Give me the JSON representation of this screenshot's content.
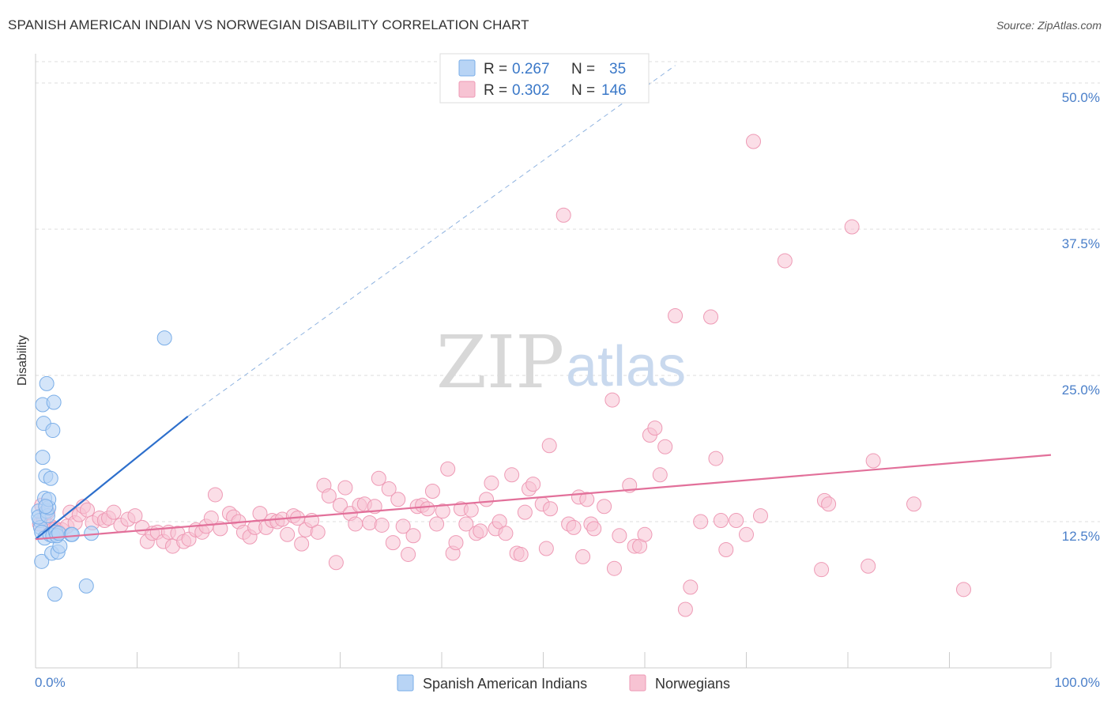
{
  "title": "SPANISH AMERICAN INDIAN VS NORWEGIAN DISABILITY CORRELATION CHART",
  "source": "Source: ZipAtlas.com",
  "watermark": {
    "zip": "ZIP",
    "atlas": "atlas"
  },
  "colors": {
    "blue_fill": "#b8d4f5",
    "blue_stroke": "#7aaee8",
    "blue_line": "#2d6fcc",
    "pink_fill": "#f7c3d3",
    "pink_stroke": "#ee9ab5",
    "pink_line": "#e2709a",
    "axis_text": "#4a7fc9",
    "grid": "#dddddd"
  },
  "legend": {
    "rows": [
      {
        "r_label": "R = ",
        "r_value": "0.267",
        "n_label": "N = ",
        "n_value": "35"
      },
      {
        "r_label": "R = ",
        "r_value": "0.302",
        "n_label": "N = ",
        "n_value": "146"
      }
    ]
  },
  "chart_data": {
    "type": "scatter",
    "ylabel": "Disability",
    "xlim": [
      0,
      100
    ],
    "ylim": [
      0,
      52.5
    ],
    "x_tick_labels": [
      "0.0%",
      "100.0%"
    ],
    "y_ticks": [
      12.5,
      25.0,
      37.5,
      50.0
    ],
    "y_tick_labels": [
      "12.5%",
      "25.0%",
      "37.5%",
      "50.0%"
    ],
    "grid": true,
    "legend_position": "top-center",
    "bottom_legend": [
      "Spanish American Indians",
      "Norwegians"
    ],
    "series": [
      {
        "name": "Spanish American Indians",
        "r": 0.267,
        "n": 35,
        "trend": {
          "x": [
            0,
            15
          ],
          "y": [
            11.0,
            21.5
          ]
        },
        "trend_extension": {
          "x": [
            15,
            63
          ],
          "y": [
            21.5,
            51.5
          ]
        },
        "points": [
          [
            0.3,
            13.4
          ],
          [
            0.4,
            12.6
          ],
          [
            0.5,
            12.0
          ],
          [
            0.6,
            11.6
          ],
          [
            0.3,
            12.9
          ],
          [
            0.7,
            18.0
          ],
          [
            0.7,
            22.5
          ],
          [
            0.8,
            20.9
          ],
          [
            0.6,
            9.1
          ],
          [
            0.9,
            14.5
          ],
          [
            0.9,
            11.1
          ],
          [
            1.0,
            16.4
          ],
          [
            1.1,
            13.4
          ],
          [
            1.1,
            24.3
          ],
          [
            1.2,
            13.0
          ],
          [
            1.3,
            13.7
          ],
          [
            1.3,
            14.4
          ],
          [
            1.4,
            11.4
          ],
          [
            1.5,
            16.2
          ],
          [
            1.7,
            20.3
          ],
          [
            1.8,
            22.7
          ],
          [
            1.6,
            9.8
          ],
          [
            1.7,
            11.3
          ],
          [
            1.9,
            6.3
          ],
          [
            2.0,
            11.6
          ],
          [
            2.2,
            9.9
          ],
          [
            2.4,
            10.4
          ],
          [
            2.1,
            11.3
          ],
          [
            2.3,
            11.5
          ],
          [
            3.5,
            11.4
          ],
          [
            3.6,
            11.4
          ],
          [
            5.0,
            7.0
          ],
          [
            5.5,
            11.5
          ],
          [
            12.7,
            28.2
          ],
          [
            1.0,
            13.8
          ]
        ]
      },
      {
        "name": "Norwegians",
        "r": 0.302,
        "n": 146,
        "trend": {
          "x": [
            0,
            100
          ],
          "y": [
            11.0,
            18.2
          ]
        },
        "points": [
          [
            0.4,
            12.3
          ],
          [
            0.6,
            13.9
          ],
          [
            0.8,
            12.7
          ],
          [
            1.2,
            13.3
          ],
          [
            1.5,
            12.1
          ],
          [
            1.7,
            11.8
          ],
          [
            2.0,
            11.9
          ],
          [
            2.3,
            11.6
          ],
          [
            2.6,
            11.8
          ],
          [
            3.1,
            12.1
          ],
          [
            3.4,
            13.3
          ],
          [
            3.9,
            12.4
          ],
          [
            4.3,
            13.1
          ],
          [
            4.7,
            13.8
          ],
          [
            5.1,
            13.5
          ],
          [
            5.6,
            12.4
          ],
          [
            6.3,
            12.8
          ],
          [
            6.8,
            12.6
          ],
          [
            7.2,
            12.8
          ],
          [
            7.7,
            13.3
          ],
          [
            8.4,
            12.2
          ],
          [
            9.1,
            12.7
          ],
          [
            9.8,
            13.0
          ],
          [
            10.5,
            12.0
          ],
          [
            11.0,
            10.8
          ],
          [
            11.5,
            11.5
          ],
          [
            12.0,
            11.6
          ],
          [
            12.6,
            10.8
          ],
          [
            13.1,
            11.6
          ],
          [
            13.5,
            10.4
          ],
          [
            14.0,
            11.5
          ],
          [
            14.6,
            10.8
          ],
          [
            15.1,
            11.0
          ],
          [
            15.8,
            11.8
          ],
          [
            16.4,
            11.6
          ],
          [
            16.8,
            12.1
          ],
          [
            17.3,
            12.8
          ],
          [
            17.7,
            14.8
          ],
          [
            18.2,
            11.9
          ],
          [
            19.1,
            13.2
          ],
          [
            19.5,
            12.9
          ],
          [
            20.0,
            12.5
          ],
          [
            20.5,
            11.6
          ],
          [
            21.1,
            11.2
          ],
          [
            21.6,
            12.0
          ],
          [
            22.1,
            13.2
          ],
          [
            22.7,
            12.0
          ],
          [
            23.3,
            12.6
          ],
          [
            23.8,
            12.5
          ],
          [
            24.3,
            12.7
          ],
          [
            24.8,
            11.4
          ],
          [
            25.4,
            13.0
          ],
          [
            25.8,
            12.8
          ],
          [
            26.2,
            10.6
          ],
          [
            26.6,
            11.8
          ],
          [
            27.2,
            12.6
          ],
          [
            27.8,
            11.6
          ],
          [
            28.4,
            15.6
          ],
          [
            28.9,
            14.7
          ],
          [
            29.6,
            9.0
          ],
          [
            30.0,
            13.9
          ],
          [
            30.5,
            15.4
          ],
          [
            31.0,
            13.2
          ],
          [
            31.5,
            12.3
          ],
          [
            31.9,
            13.9
          ],
          [
            32.4,
            14.0
          ],
          [
            32.9,
            12.4
          ],
          [
            33.4,
            13.8
          ],
          [
            33.8,
            16.2
          ],
          [
            34.1,
            12.2
          ],
          [
            34.8,
            15.3
          ],
          [
            35.2,
            10.7
          ],
          [
            35.7,
            14.4
          ],
          [
            36.2,
            12.1
          ],
          [
            36.7,
            9.7
          ],
          [
            37.2,
            11.3
          ],
          [
            37.6,
            13.8
          ],
          [
            38.1,
            13.9
          ],
          [
            38.6,
            13.6
          ],
          [
            39.1,
            15.1
          ],
          [
            39.5,
            12.3
          ],
          [
            40.1,
            13.4
          ],
          [
            40.6,
            17.0
          ],
          [
            41.1,
            9.8
          ],
          [
            41.4,
            10.7
          ],
          [
            41.9,
            13.6
          ],
          [
            42.4,
            12.3
          ],
          [
            42.9,
            13.5
          ],
          [
            43.4,
            11.5
          ],
          [
            43.8,
            11.7
          ],
          [
            44.4,
            14.4
          ],
          [
            44.9,
            15.8
          ],
          [
            45.3,
            11.9
          ],
          [
            45.7,
            12.5
          ],
          [
            46.3,
            11.5
          ],
          [
            46.9,
            16.5
          ],
          [
            47.4,
            9.8
          ],
          [
            47.8,
            9.7
          ],
          [
            48.2,
            13.3
          ],
          [
            48.6,
            15.3
          ],
          [
            49.0,
            15.7
          ],
          [
            49.9,
            14.0
          ],
          [
            50.3,
            10.2
          ],
          [
            50.7,
            13.6
          ],
          [
            52.0,
            38.7
          ],
          [
            52.5,
            12.3
          ],
          [
            53.0,
            12.0
          ],
          [
            53.5,
            14.6
          ],
          [
            53.9,
            9.5
          ],
          [
            54.3,
            14.4
          ],
          [
            54.7,
            12.3
          ],
          [
            55.0,
            11.9
          ],
          [
            56.0,
            13.8
          ],
          [
            56.8,
            22.9
          ],
          [
            57.0,
            8.5
          ],
          [
            57.5,
            11.3
          ],
          [
            58.5,
            15.6
          ],
          [
            59.0,
            10.4
          ],
          [
            59.5,
            10.4
          ],
          [
            60.0,
            11.4
          ],
          [
            60.5,
            19.9
          ],
          [
            61.0,
            20.5
          ],
          [
            61.5,
            16.5
          ],
          [
            62.0,
            18.9
          ],
          [
            63.0,
            30.1
          ],
          [
            64.0,
            5.0
          ],
          [
            64.5,
            6.9
          ],
          [
            65.5,
            12.5
          ],
          [
            66.5,
            30.0
          ],
          [
            67.0,
            17.9
          ],
          [
            67.5,
            12.6
          ],
          [
            68.0,
            10.1
          ],
          [
            69.0,
            12.6
          ],
          [
            70.0,
            11.4
          ],
          [
            70.7,
            45.0
          ],
          [
            73.8,
            34.8
          ],
          [
            77.4,
            8.4
          ],
          [
            77.7,
            14.3
          ],
          [
            78.1,
            14.0
          ],
          [
            80.4,
            37.7
          ],
          [
            82.0,
            8.7
          ],
          [
            82.5,
            17.7
          ],
          [
            86.5,
            14.0
          ],
          [
            91.4,
            6.7
          ],
          [
            71.4,
            13.0
          ],
          [
            50.6,
            19.0
          ]
        ]
      }
    ]
  }
}
